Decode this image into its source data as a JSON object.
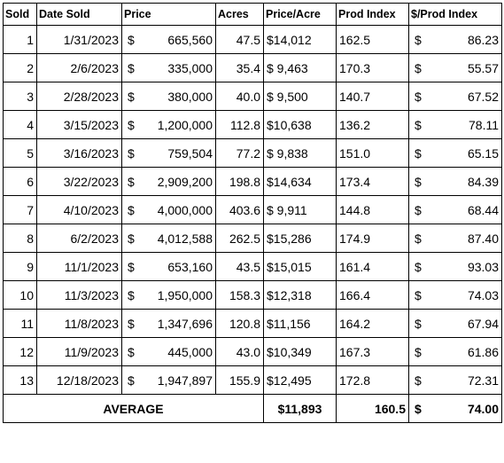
{
  "headers": {
    "sold": "Sold",
    "date_sold": "Date Sold",
    "price": "Price",
    "acres": "Acres",
    "price_per_acre": "Price/Acre",
    "prod_index": "Prod Index",
    "dollar_per_prod_index": "$/Prod Index"
  },
  "currency_symbol": "$",
  "rows": [
    {
      "sold": "1",
      "date": "1/31/2023",
      "price": "665,560",
      "acres": "47.5",
      "ppa": "$14,012",
      "pi": "162.5",
      "dpi": "86.23"
    },
    {
      "sold": "2",
      "date": "2/6/2023",
      "price": "335,000",
      "acres": "35.4",
      "ppa": "$ 9,463",
      "pi": "170.3",
      "dpi": "55.57"
    },
    {
      "sold": "3",
      "date": "2/28/2023",
      "price": "380,000",
      "acres": "40.0",
      "ppa": "$ 9,500",
      "pi": "140.7",
      "dpi": "67.52"
    },
    {
      "sold": "4",
      "date": "3/15/2023",
      "price": "1,200,000",
      "acres": "112.8",
      "ppa": "$10,638",
      "pi": "136.2",
      "dpi": "78.11"
    },
    {
      "sold": "5",
      "date": "3/16/2023",
      "price": "759,504",
      "acres": "77.2",
      "ppa": "$ 9,838",
      "pi": "151.0",
      "dpi": "65.15"
    },
    {
      "sold": "6",
      "date": "3/22/2023",
      "price": "2,909,200",
      "acres": "198.8",
      "ppa": "$14,634",
      "pi": "173.4",
      "dpi": "84.39"
    },
    {
      "sold": "7",
      "date": "4/10/2023",
      "price": "4,000,000",
      "acres": "403.6",
      "ppa": "$ 9,911",
      "pi": "144.8",
      "dpi": "68.44"
    },
    {
      "sold": "8",
      "date": "6/2/2023",
      "price": "4,012,588",
      "acres": "262.5",
      "ppa": "$15,286",
      "pi": "174.9",
      "dpi": "87.40"
    },
    {
      "sold": "9",
      "date": "11/1/2023",
      "price": "653,160",
      "acres": "43.5",
      "ppa": "$15,015",
      "pi": "161.4",
      "dpi": "93.03"
    },
    {
      "sold": "10",
      "date": "11/3/2023",
      "price": "1,950,000",
      "acres": "158.3",
      "ppa": "$12,318",
      "pi": "166.4",
      "dpi": "74.03"
    },
    {
      "sold": "11",
      "date": "11/8/2023",
      "price": "1,347,696",
      "acres": "120.8",
      "ppa": "$11,156",
      "pi": "164.2",
      "dpi": "67.94"
    },
    {
      "sold": "12",
      "date": "11/9/2023",
      "price": "445,000",
      "acres": "43.0",
      "ppa": "$10,349",
      "pi": "167.3",
      "dpi": "61.86"
    },
    {
      "sold": "13",
      "date": "12/18/2023",
      "price": "1,947,897",
      "acres": "155.9",
      "ppa": "$12,495",
      "pi": "172.8",
      "dpi": "72.31"
    }
  ],
  "average": {
    "label": "AVERAGE",
    "ppa": "$11,893",
    "pi": "160.5",
    "dpi": "74.00"
  }
}
